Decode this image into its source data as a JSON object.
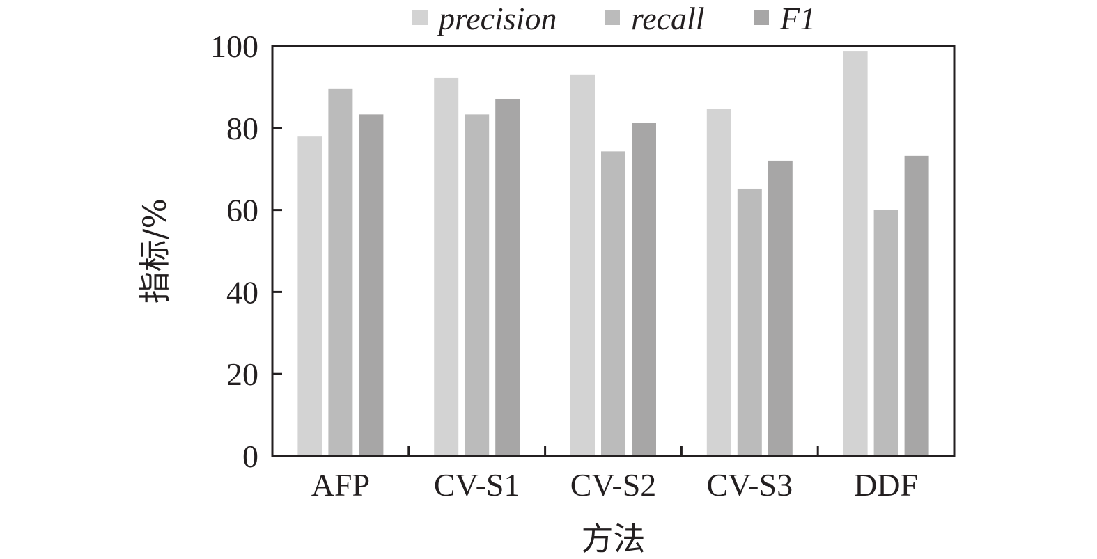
{
  "chart_data": {
    "type": "bar",
    "title": "",
    "xlabel": "方法",
    "ylabel": "指标/%",
    "ylim": [
      0,
      100
    ],
    "yticks": [
      0,
      20,
      40,
      60,
      80,
      100
    ],
    "grid": false,
    "legend_position": "top-center",
    "categories": [
      "AFP",
      "CV-S1",
      "CV-S2",
      "CV-S3",
      "DDF"
    ],
    "series": [
      {
        "name": "precision",
        "italic_name": true,
        "color": "#d3d3d3",
        "values": [
          77.9,
          92.2,
          92.9,
          84.7,
          98.8
        ]
      },
      {
        "name": "recall",
        "italic_name": true,
        "color": "#bbbbbb",
        "values": [
          89.5,
          83.3,
          74.3,
          65.2,
          60.1
        ]
      },
      {
        "name": "F1",
        "italic_name": false,
        "color": "#a7a6a6",
        "values": [
          83.3,
          87.1,
          81.3,
          72.0,
          73.2
        ]
      }
    ]
  }
}
